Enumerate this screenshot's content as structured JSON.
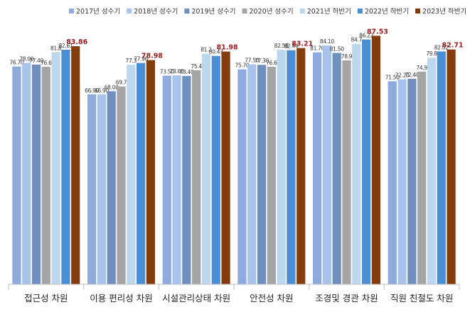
{
  "chart_data": {
    "type": "bar",
    "title": "",
    "xlabel": "",
    "ylabel": "",
    "ylim": [
      0,
      90
    ],
    "grid": false,
    "legend_position": "top",
    "categories": [
      "접근성 차원",
      "이용 편리성 차원",
      "시설관리상태 차원",
      "안전성 차원",
      "조경및 경관 차원",
      "직원 친절도 차원"
    ],
    "series": [
      {
        "name": "2017년 성수기",
        "color": "#8faadc",
        "labels": [
          "76.70",
          "66.90",
          "73.50",
          "75.70",
          "81.70",
          "71.50"
        ],
        "values": [
          76.7,
          66.9,
          73.5,
          75.7,
          81.7,
          71.5
        ]
      },
      {
        "name": "2018년 성수기",
        "color": "#a9c4eb",
        "labels": [
          "78.00",
          "66.90",
          "73.60",
          "77.50",
          "84.10",
          "72.20"
        ],
        "values": [
          78.0,
          66.9,
          73.6,
          77.5,
          84.1,
          72.2
        ]
      },
      {
        "name": "2019년 성수기",
        "color": "#6f8fbf",
        "labels": [
          "77.40",
          "68.00",
          "73.40",
          "77.30",
          "81.50",
          "72.40"
        ],
        "values": [
          77.4,
          68.0,
          73.4,
          77.3,
          81.5,
          72.4
        ]
      },
      {
        "name": "2020년 성수기",
        "color": "#a5a5a5",
        "labels": [
          "76.6",
          "69.7",
          "75.4",
          "76.6",
          "78.9",
          "74.9"
        ],
        "values": [
          76.6,
          69.7,
          75.4,
          76.6,
          78.9,
          74.9
        ]
      },
      {
        "name": "2021년 하반기",
        "color": "#bdd7ee",
        "labels": [
          "81.8",
          "77.3",
          "81.2",
          "82.58",
          "84.7",
          "79.8"
        ],
        "values": [
          81.8,
          77.3,
          81.2,
          82.58,
          84.7,
          79.8
        ]
      },
      {
        "name": "2022년 하반기",
        "color": "#4a8fd4",
        "labels": [
          "82.61",
          "77.96",
          "80.43",
          "82.44",
          "86.22",
          "82.02"
        ],
        "values": [
          82.61,
          77.96,
          80.43,
          82.44,
          86.22,
          82.02
        ]
      },
      {
        "name": "2023년 하반기",
        "color": "#843c0c",
        "labels": [
          "83.86",
          "78.98",
          "81.98",
          "83.21",
          "87.53",
          "82.71"
        ],
        "values": [
          83.86,
          78.98,
          81.98,
          83.21,
          87.53,
          82.71
        ]
      }
    ]
  }
}
